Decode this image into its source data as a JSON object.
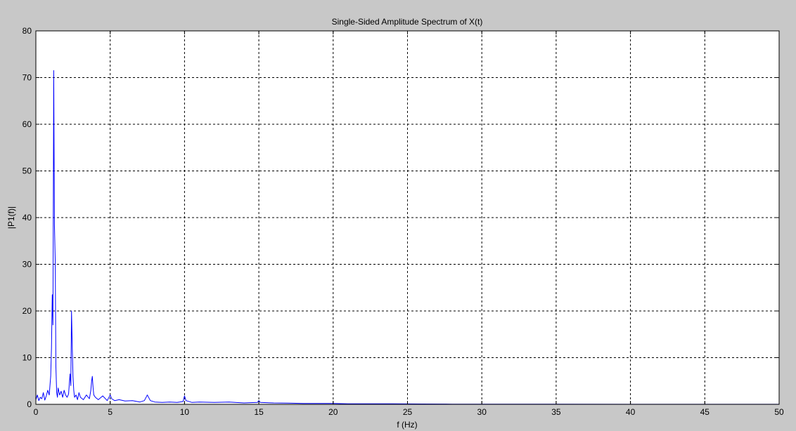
{
  "chart_data": {
    "type": "line",
    "title": "Single-Sided Amplitude Spectrum of X(t)",
    "xlabel": "f (Hz)",
    "ylabel": "|P1(f)|",
    "xlim": [
      0,
      50
    ],
    "ylim": [
      0,
      80
    ],
    "xticks": [
      "0",
      "5",
      "10",
      "15",
      "20",
      "25",
      "30",
      "35",
      "40",
      "45",
      "50"
    ],
    "yticks": [
      "0",
      "10",
      "20",
      "30",
      "40",
      "50",
      "60",
      "70",
      "80"
    ],
    "grid": true,
    "line_color": "#0000ff",
    "series": [
      {
        "x": [
          0,
          0.1,
          0.2,
          0.3,
          0.4,
          0.5,
          0.6,
          0.7,
          0.8,
          0.9,
          1.0,
          1.05,
          1.1,
          1.15,
          1.2,
          1.25,
          1.3,
          1.35,
          1.4,
          1.45,
          1.5,
          1.6,
          1.7,
          1.8,
          1.9,
          2.0,
          2.1,
          2.2,
          2.3,
          2.35,
          2.4,
          2.45,
          2.5,
          2.55,
          2.6,
          2.7,
          2.8,
          2.9,
          3.0,
          3.2,
          3.4,
          3.6,
          3.7,
          3.75,
          3.8,
          3.85,
          3.9,
          4.0,
          4.2,
          4.5,
          4.8,
          5.0,
          5.1,
          5.3,
          5.6,
          6.0,
          6.5,
          7.0,
          7.3,
          7.5,
          7.7,
          8.0,
          8.5,
          9.0,
          9.5,
          9.9,
          10.0,
          10.1,
          10.5,
          11.0,
          12.0,
          13.0,
          14.0,
          14.9,
          15.0,
          15.1,
          16.0,
          17.0,
          18.0,
          19.0,
          20.0,
          21.0,
          22.0,
          24.0,
          26.0,
          28.0,
          30.0,
          35.0,
          40.0,
          45.0,
          50.0
        ],
        "y": [
          1.0,
          2.0,
          0.8,
          1.5,
          1.2,
          2.5,
          0.9,
          1.8,
          3.0,
          2.0,
          6.0,
          12.0,
          23.5,
          17.0,
          71.5,
          38.5,
          31.0,
          8.0,
          2.5,
          1.5,
          3.5,
          2.0,
          2.8,
          1.5,
          3.0,
          2.0,
          1.5,
          2.2,
          6.5,
          4.0,
          20.0,
          12.0,
          6.0,
          3.0,
          1.5,
          2.0,
          1.0,
          2.5,
          1.5,
          1.0,
          2.0,
          1.2,
          3.0,
          5.0,
          6.0,
          3.5,
          2.0,
          1.5,
          1.0,
          1.8,
          0.8,
          2.0,
          1.2,
          0.8,
          1.0,
          0.7,
          0.8,
          0.5,
          0.8,
          2.0,
          0.8,
          0.5,
          0.4,
          0.5,
          0.4,
          0.6,
          1.8,
          0.8,
          0.4,
          0.5,
          0.4,
          0.5,
          0.3,
          0.4,
          0.8,
          0.4,
          0.3,
          0.25,
          0.2,
          0.2,
          0.2,
          0.1,
          0.1,
          0.1,
          0.08,
          0.05,
          0.05,
          0.03,
          0.02,
          0.02,
          0.02
        ]
      }
    ]
  }
}
